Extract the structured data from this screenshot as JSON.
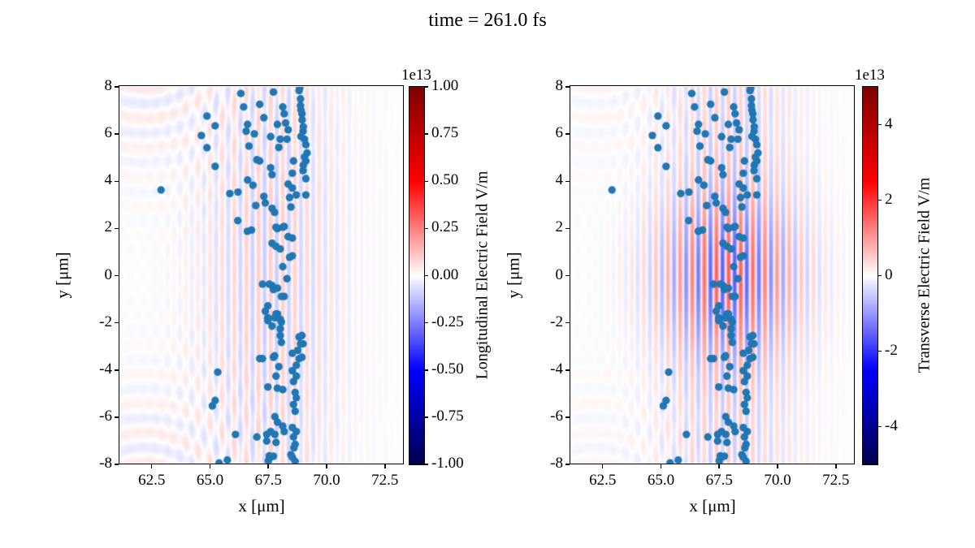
{
  "chart_data": {
    "type": "heatmap+scatter",
    "title": "time = 261.0 fs",
    "shared": {
      "xlabel": "x [μm]",
      "ylabel": "y [μm]",
      "xlim": [
        61.15,
        73.31
      ],
      "ylim": [
        -8,
        8
      ],
      "xticks": {
        "values": [
          62.5,
          65.0,
          67.5,
          70.0,
          72.5
        ],
        "labels": [
          "62.5",
          "65.0",
          "67.5",
          "70.0",
          "72.5"
        ]
      },
      "yticks": {
        "values": [
          8,
          6,
          4,
          2,
          0,
          -2,
          -4,
          -6,
          -8
        ],
        "labels": [
          "8",
          "6",
          "4",
          "2",
          "0",
          "-2",
          "-4",
          "-6",
          "-8"
        ]
      },
      "particles": [
        [
          66.32,
          7.72
        ],
        [
          67.72,
          7.78
        ],
        [
          68.82,
          7.84
        ],
        [
          68.88,
          7.49
        ],
        [
          68.85,
          7.95
        ],
        [
          66.44,
          7.15
        ],
        [
          67.13,
          7.26
        ],
        [
          68.12,
          7.15
        ],
        [
          68.18,
          6.86
        ],
        [
          68.88,
          7.21
        ],
        [
          68.94,
          6.86
        ],
        [
          68.9,
          7.02
        ],
        [
          67.31,
          6.69
        ],
        [
          66.61,
          6.41
        ],
        [
          66.55,
          6.12
        ],
        [
          67.89,
          6.41
        ],
        [
          68.24,
          6.47
        ],
        [
          68.35,
          6.18
        ],
        [
          68.99,
          6.12
        ],
        [
          69.05,
          5.78
        ],
        [
          68.95,
          6.6
        ],
        [
          69.0,
          6.31
        ],
        [
          64.87,
          6.76
        ],
        [
          65.22,
          6.35
        ],
        [
          64.63,
          5.94
        ],
        [
          64.87,
          5.42
        ],
        [
          66.9,
          6.01
        ],
        [
          67.6,
          5.89
        ],
        [
          68.01,
          5.78
        ],
        [
          68.3,
          5.78
        ],
        [
          66.67,
          5.49
        ],
        [
          67.95,
          5.43
        ],
        [
          69.11,
          5.55
        ],
        [
          69.16,
          5.2
        ],
        [
          68.9,
          5.9
        ],
        [
          67.01,
          4.91
        ],
        [
          67.13,
          4.86
        ],
        [
          68.58,
          4.86
        ],
        [
          69.11,
          4.86
        ],
        [
          69.05,
          5.02
        ],
        [
          69.0,
          4.68
        ],
        [
          67.6,
          4.57
        ],
        [
          67.66,
          4.28
        ],
        [
          68.53,
          4.34
        ],
        [
          68.99,
          4.45
        ],
        [
          69.11,
          4.11
        ],
        [
          66.61,
          4.05
        ],
        [
          65.22,
          4.63
        ],
        [
          66.84,
          3.83
        ],
        [
          68.35,
          3.88
        ],
        [
          68.53,
          3.71
        ],
        [
          68.7,
          3.42
        ],
        [
          68.41,
          3.31
        ],
        [
          69.11,
          3.42
        ],
        [
          66.2,
          3.54
        ],
        [
          65.85,
          3.48
        ],
        [
          67.31,
          3.36
        ],
        [
          62.9,
          3.63
        ],
        [
          66.96,
          2.97
        ],
        [
          67.37,
          3.08
        ],
        [
          68.47,
          2.91
        ],
        [
          67.66,
          2.85
        ],
        [
          67.77,
          2.68
        ],
        [
          66.19,
          2.33
        ],
        [
          68.12,
          2.05
        ],
        [
          66.78,
          1.93
        ],
        [
          67.89,
          1.99
        ],
        [
          68.18,
          2.08
        ],
        [
          66.6,
          1.88
        ],
        [
          67.83,
          2.05
        ],
        [
          68.53,
          1.59
        ],
        [
          68.35,
          1.65
        ],
        [
          67.66,
          1.37
        ],
        [
          67.83,
          1.24
        ],
        [
          68.01,
          1.13
        ],
        [
          68.53,
          0.84
        ],
        [
          68.41,
          0.78
        ],
        [
          68.12,
          0.38
        ],
        [
          68.3,
          -0.13
        ],
        [
          67.25,
          -0.36
        ],
        [
          67.66,
          -0.42
        ],
        [
          67.89,
          -0.53
        ],
        [
          67.54,
          -0.36
        ],
        [
          67.72,
          -0.59
        ],
        [
          68.18,
          -0.88
        ],
        [
          68.06,
          -0.88
        ],
        [
          67.48,
          -1.28
        ],
        [
          67.37,
          -1.51
        ],
        [
          67.89,
          -1.62
        ],
        [
          67.83,
          -1.62
        ],
        [
          67.48,
          -1.79
        ],
        [
          67.77,
          -1.79
        ],
        [
          68.01,
          -1.85
        ],
        [
          67.48,
          -1.91
        ],
        [
          68.06,
          -1.97
        ],
        [
          67.66,
          -2.14
        ],
        [
          68.01,
          -2.25
        ],
        [
          68.01,
          -2.54
        ],
        [
          68.06,
          -2.83
        ],
        [
          68.94,
          -2.54
        ],
        [
          68.82,
          -2.6
        ],
        [
          68.99,
          -2.89
        ],
        [
          68.88,
          -2.89
        ],
        [
          68.76,
          -3.17
        ],
        [
          68.82,
          -3.52
        ],
        [
          67.13,
          -3.52
        ],
        [
          67.72,
          -3.46
        ],
        [
          68.94,
          -3.46
        ],
        [
          67.25,
          -3.52
        ],
        [
          67.77,
          -3.4
        ],
        [
          68.53,
          -3.29
        ],
        [
          68.7,
          -3.8
        ],
        [
          67.95,
          -3.86
        ],
        [
          68.53,
          -4.03
        ],
        [
          65.33,
          -4.09
        ],
        [
          68.7,
          -4.26
        ],
        [
          67.83,
          -4.26
        ],
        [
          68.58,
          -4.49
        ],
        [
          67.48,
          -4.72
        ],
        [
          67.89,
          -4.77
        ],
        [
          68.12,
          -4.83
        ],
        [
          68.65,
          -4.95
        ],
        [
          68.7,
          -5.18
        ],
        [
          65.22,
          -5.29
        ],
        [
          65.1,
          -5.52
        ],
        [
          68.58,
          -5.46
        ],
        [
          68.65,
          -5.75
        ],
        [
          67.78,
          -5.98
        ],
        [
          67.89,
          -6.21
        ],
        [
          68.12,
          -6.38
        ],
        [
          67.6,
          -6.61
        ],
        [
          67.43,
          -6.73
        ],
        [
          67.78,
          -6.73
        ],
        [
          68.18,
          -6.61
        ],
        [
          68.53,
          -6.44
        ],
        [
          68.7,
          -6.61
        ],
        [
          68.58,
          -6.84
        ],
        [
          66.09,
          -6.73
        ],
        [
          67.01,
          -6.84
        ],
        [
          67.43,
          -7.01
        ],
        [
          67.83,
          -7.07
        ],
        [
          68.6,
          -7.3
        ],
        [
          68.65,
          -7.15
        ],
        [
          67.54,
          -7.64
        ],
        [
          67.6,
          -7.7
        ],
        [
          67.72,
          -7.65
        ],
        [
          68.47,
          -7.59
        ],
        [
          68.53,
          -7.7
        ],
        [
          68.65,
          -7.87
        ],
        [
          65.39,
          -7.94
        ],
        [
          65.74,
          -7.82
        ],
        [
          67.5,
          -7.85
        ]
      ]
    },
    "panels": [
      {
        "name": "longitudinal",
        "colorbar": {
          "exponent": "1e13",
          "label": "Longitudinal Electric Field V/m",
          "tick_labels": [
            "1.00",
            "0.75",
            "0.50",
            "0.25",
            "0.00",
            "-0.25",
            "-0.50",
            "-0.75",
            "-1.00"
          ],
          "tick_values": [
            1.0,
            0.75,
            0.5,
            0.25,
            0.0,
            -0.25,
            -0.5,
            -0.75,
            -1.0
          ],
          "range": [
            -1.0,
            1.0
          ]
        },
        "field": {
          "center_x": 67.6,
          "sigma_x": 2.2,
          "wavelength": 0.52,
          "sigma_y": 5.5,
          "floor": 0.5,
          "amplitude": 0.1,
          "ripples": [
            {
              "x": 62.2,
              "y": 10.4,
              "amp": 0.05,
              "wavelength": 1.25,
              "sigma": 4.5
            },
            {
              "x": 62.2,
              "y": -10.4,
              "amp": 0.05,
              "wavelength": 1.25,
              "sigma": 4.5
            }
          ]
        }
      },
      {
        "name": "transverse",
        "colorbar": {
          "exponent": "1e13",
          "label": "Transverse Electric Field V/m",
          "tick_labels": [
            "4",
            "2",
            "0",
            "-2",
            "-4"
          ],
          "tick_values": [
            4,
            2,
            0,
            -2,
            -4
          ],
          "range": [
            -5.0,
            5.0
          ]
        },
        "field": {
          "center_x": 67.9,
          "sigma_x": 2.1,
          "wavelength": 0.52,
          "sigma_y": 2.3,
          "floor": 0.28,
          "amplitude": 0.33,
          "ripples": [
            {
              "x": 62.2,
              "y": 10.4,
              "amp": 0.025,
              "wavelength": 1.25,
              "sigma": 4.5
            },
            {
              "x": 62.2,
              "y": -10.4,
              "amp": 0.025,
              "wavelength": 1.25,
              "sigma": 4.5
            }
          ]
        }
      }
    ],
    "colors": {
      "scatter": "#1f77b4",
      "colormap": "seismic"
    }
  }
}
